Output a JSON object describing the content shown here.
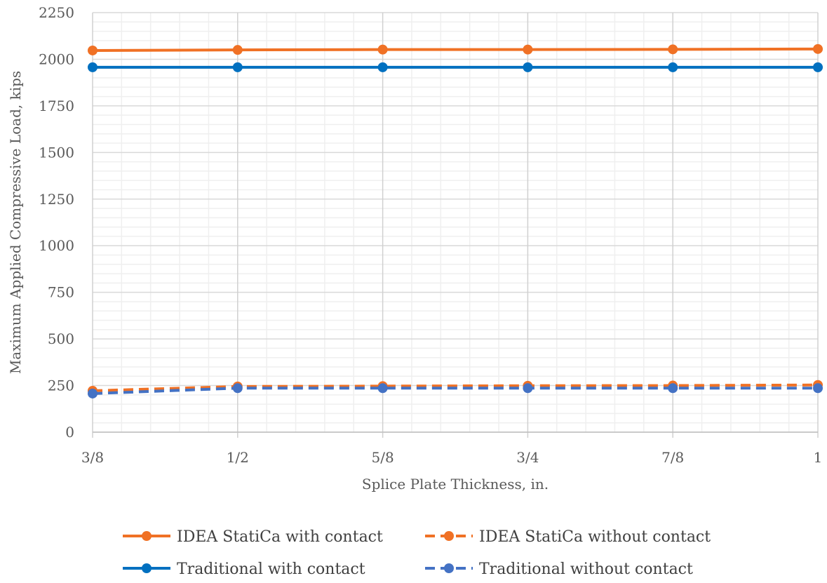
{
  "chart_data": {
    "type": "line",
    "title": "",
    "xlabel": "Splice Plate Thickness, in.",
    "ylabel": "Maximum Applied Compressive Load, kips",
    "categories": [
      "3/8",
      "1/2",
      "5/8",
      "3/4",
      "7/8",
      "1"
    ],
    "ylim": [
      0,
      2250
    ],
    "yticks": [
      0,
      250,
      500,
      750,
      1000,
      1250,
      1500,
      1750,
      2000,
      2250
    ],
    "grid": true,
    "legend_position": "bottom",
    "series": [
      {
        "name": "IDEA StatiCa with contact",
        "values": [
          2047,
          2050,
          2052,
          2052,
          2053,
          2055
        ],
        "color": "#F07125",
        "dash": false
      },
      {
        "name": "IDEA StatiCa without contact",
        "values": [
          222,
          245,
          247,
          249,
          250,
          253
        ],
        "color": "#F07125",
        "dash": true
      },
      {
        "name": "Traditional with contact",
        "values": [
          1957,
          1957,
          1957,
          1957,
          1957,
          1957
        ],
        "color": "#0070C0",
        "dash": false
      },
      {
        "name": "Traditional without contact",
        "values": [
          207,
          236,
          236,
          236,
          236,
          236
        ],
        "color": "#4472C4",
        "dash": true
      }
    ]
  }
}
